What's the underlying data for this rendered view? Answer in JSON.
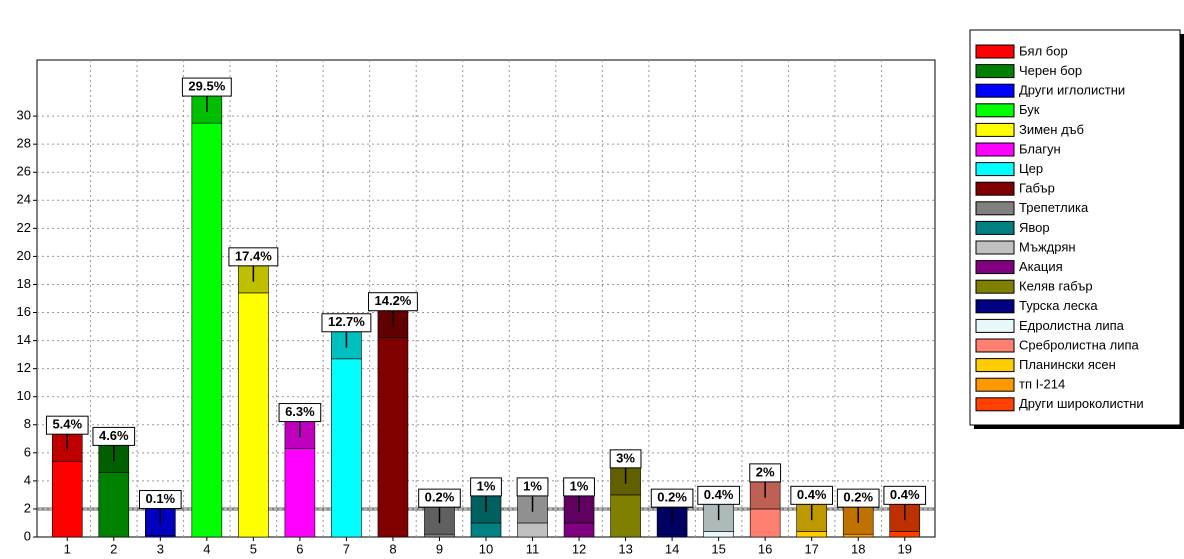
{
  "chart_data": {
    "type": "bar",
    "categories": [
      "1",
      "2",
      "3",
      "4",
      "5",
      "6",
      "7",
      "8",
      "9",
      "10",
      "11",
      "12",
      "13",
      "14",
      "15",
      "16",
      "17",
      "18",
      "19"
    ],
    "values": [
      5.4,
      4.6,
      0.1,
      29.5,
      17.4,
      6.3,
      12.7,
      14.2,
      0.2,
      1,
      1,
      1,
      3,
      0.2,
      0.4,
      2,
      0.4,
      0.2,
      0.4
    ],
    "value_labels": [
      "5.4%",
      "4.6%",
      "0.1%",
      "29.5%",
      "17.4%",
      "6.3%",
      "12.7%",
      "14.2%",
      "0.2%",
      "1%",
      "1%",
      "1%",
      "3%",
      "0.2%",
      "0.4%",
      "2%",
      "0.4%",
      "0.2%",
      "0.4%"
    ],
    "colors": [
      "#ff0000",
      "#008000",
      "#0000ff",
      "#00ff00",
      "#ffff00",
      "#ff00ff",
      "#00ffff",
      "#800000",
      "#808080",
      "#008080",
      "#c0c0c0",
      "#800080",
      "#808000",
      "#000080",
      "#e8f8f8",
      "#ff8070",
      "#ffcc00",
      "#ff9900",
      "#ff4000"
    ],
    "legend": [
      "Бял бор",
      "Черен бор",
      "Други иглолистни",
      "Бук",
      "Зимен дъб",
      "Благун",
      "Цер",
      "Габър",
      "Трепетлика",
      "Явор",
      "Мъждрян",
      "Акация",
      "Келяв габър",
      "Турска леска",
      "Едролистна липа",
      "Сребролистна липа",
      "Планински ясен",
      "тп I-214",
      "Други широколистни"
    ],
    "reference_line": 2,
    "ylim": [
      0,
      34
    ],
    "yticks": [
      0,
      2,
      4,
      6,
      8,
      10,
      12,
      14,
      16,
      18,
      20,
      22,
      24,
      26,
      28,
      30
    ],
    "grid": true
  }
}
